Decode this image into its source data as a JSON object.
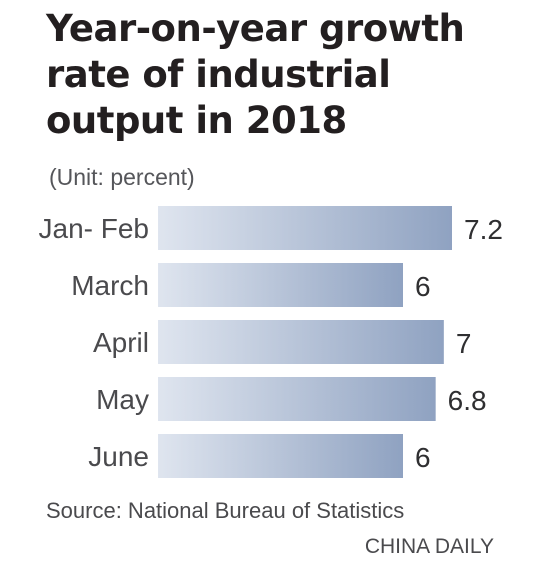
{
  "chart_data": {
    "type": "bar",
    "orientation": "horizontal",
    "title_lines": [
      "Year-on-year growth",
      "rate of industrial",
      "output in 2018"
    ],
    "subtitle": "(Unit: percent)",
    "categories": [
      "Jan- Feb",
      "March",
      "April",
      "May",
      "June"
    ],
    "values": [
      7.2,
      6,
      7,
      6.8,
      6
    ],
    "value_labels": [
      "7.2",
      "6",
      "7",
      "6.8",
      "6"
    ],
    "xlim": [
      0,
      7.2
    ],
    "grid": false,
    "legend": "none",
    "bar_colors": {
      "start": "#dfe5ef",
      "end": "#8fa2c1"
    }
  },
  "footer": {
    "source": "Source: National Bureau of Statistics",
    "credit": "CHINA DAILY"
  }
}
